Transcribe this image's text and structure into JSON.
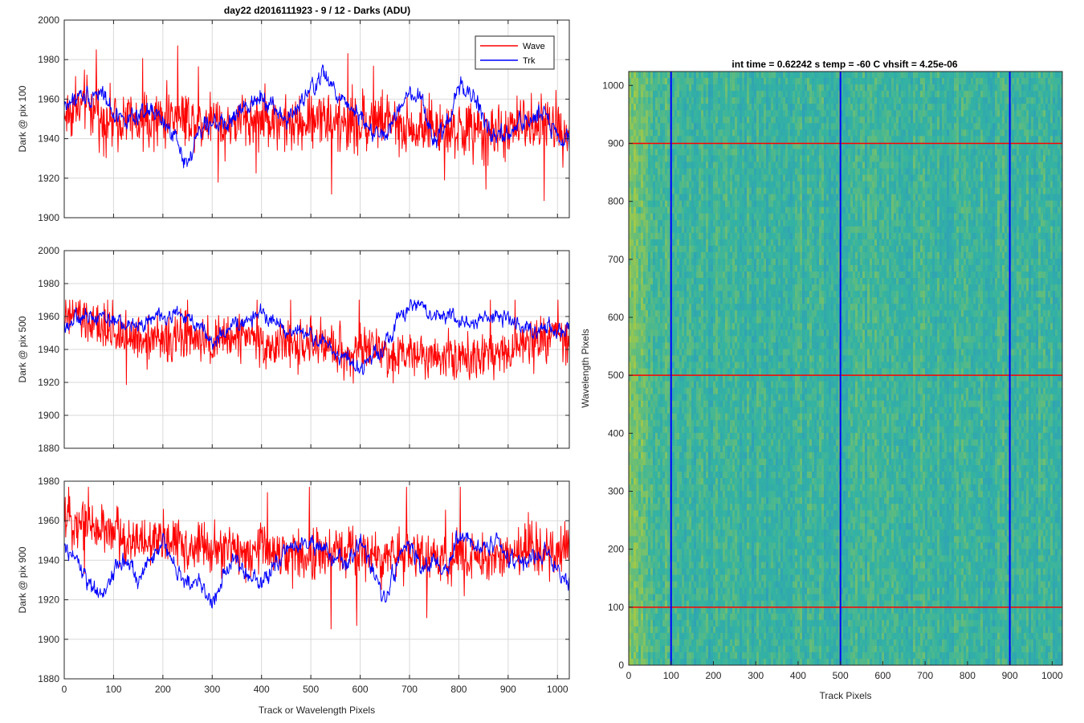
{
  "figure": {
    "title": "day22 d2016111923 - 9 / 12 - Darks (ADU)"
  },
  "colors": {
    "wave": "#ff0000",
    "trk": "#0000ff",
    "grid": "#d9d9d9",
    "axis": "#262626",
    "heat_low": "#2a93c6",
    "heat_mid": "#34b3a2",
    "heat_high": "#9fc94a"
  },
  "chart_data": [
    {
      "type": "line",
      "title": "",
      "xlabel": "",
      "ylabel": "Dark @ pix 100",
      "xlim": [
        0,
        1024
      ],
      "ylim": [
        1900,
        2000
      ],
      "xticks": [
        0,
        100,
        200,
        300,
        400,
        500,
        600,
        700,
        800,
        900,
        1000
      ],
      "yticks": [
        1900,
        1920,
        1940,
        1960,
        1980,
        2000
      ],
      "xtick_labels": [
        "",
        "",
        "",
        "",
        "",
        "",
        "",
        "",
        "",
        "",
        ""
      ],
      "ytick_labels": [
        "1900",
        "1920",
        "1940",
        "1960",
        "1980",
        "2000"
      ],
      "grid": true,
      "legend": {
        "position": "top-right",
        "entries": [
          "Wave",
          "Trk"
        ]
      },
      "series": [
        {
          "name": "Wave",
          "color": "#ff0000",
          "x": [
            0,
            25,
            50,
            75,
            100,
            125,
            150,
            175,
            200,
            225,
            250,
            275,
            300,
            325,
            350,
            375,
            400,
            425,
            450,
            475,
            500,
            525,
            550,
            575,
            600,
            625,
            650,
            675,
            700,
            725,
            750,
            775,
            800,
            825,
            850,
            875,
            900,
            925,
            950,
            975,
            1000,
            1024
          ],
          "y": [
            1952,
            1955,
            1958,
            1950,
            1949,
            1952,
            1946,
            1950,
            1950,
            1953,
            1951,
            1948,
            1952,
            1946,
            1949,
            1950,
            1948,
            1951,
            1946,
            1947,
            1949,
            1953,
            1946,
            1948,
            1946,
            1950,
            1949,
            1944,
            1945,
            1947,
            1946,
            1943,
            1944,
            1945,
            1941,
            1944,
            1942,
            1948,
            1945,
            1947,
            1946,
            1944
          ],
          "noise": 12,
          "spike_min": 1903,
          "spike_max": 1987
        },
        {
          "name": "Trk",
          "color": "#0000ff",
          "x": [
            0,
            25,
            50,
            75,
            100,
            125,
            150,
            175,
            200,
            225,
            250,
            275,
            300,
            325,
            350,
            375,
            400,
            425,
            450,
            475,
            500,
            525,
            550,
            575,
            600,
            625,
            650,
            675,
            700,
            725,
            750,
            775,
            800,
            825,
            850,
            875,
            900,
            925,
            950,
            975,
            1000,
            1024
          ],
          "y": [
            1957,
            1960,
            1962,
            1964,
            1953,
            1950,
            1949,
            1955,
            1948,
            1940,
            1927,
            1945,
            1950,
            1945,
            1952,
            1958,
            1963,
            1955,
            1950,
            1955,
            1965,
            1973,
            1963,
            1958,
            1952,
            1943,
            1940,
            1953,
            1962,
            1958,
            1938,
            1946,
            1967,
            1963,
            1950,
            1940,
            1942,
            1948,
            1950,
            1955,
            1940,
            1938
          ],
          "noise": 5
        }
      ]
    },
    {
      "type": "line",
      "title": "",
      "xlabel": "",
      "ylabel": "Dark @ pix 500",
      "xlim": [
        0,
        1024
      ],
      "ylim": [
        1880,
        2000
      ],
      "xticks": [
        0,
        100,
        200,
        300,
        400,
        500,
        600,
        700,
        800,
        900,
        1000
      ],
      "yticks": [
        1880,
        1900,
        1920,
        1940,
        1960,
        1980,
        2000
      ],
      "xtick_labels": [
        "",
        "",
        "",
        "",
        "",
        "",
        "",
        "",
        "",
        "",
        ""
      ],
      "ytick_labels": [
        "1880",
        "1900",
        "1920",
        "1940",
        "1960",
        "1980",
        "2000"
      ],
      "grid": true,
      "series": [
        {
          "name": "Wave",
          "color": "#ff0000",
          "x": [
            0,
            25,
            50,
            75,
            100,
            125,
            150,
            175,
            200,
            225,
            250,
            275,
            300,
            325,
            350,
            375,
            400,
            425,
            450,
            475,
            500,
            525,
            550,
            575,
            600,
            625,
            650,
            675,
            700,
            725,
            750,
            775,
            800,
            825,
            850,
            875,
            900,
            925,
            950,
            975,
            1000,
            1024
          ],
          "y": [
            1958,
            1962,
            1955,
            1952,
            1948,
            1950,
            1946,
            1948,
            1945,
            1946,
            1948,
            1943,
            1944,
            1946,
            1948,
            1950,
            1945,
            1940,
            1944,
            1941,
            1942,
            1944,
            1940,
            1938,
            1940,
            1942,
            1938,
            1936,
            1938,
            1940,
            1936,
            1938,
            1934,
            1936,
            1938,
            1940,
            1938,
            1942,
            1944,
            1946,
            1948,
            1944
          ],
          "noise": 12,
          "spike_min": 1891,
          "spike_max": 1970
        },
        {
          "name": "Trk",
          "color": "#0000ff",
          "x": [
            0,
            25,
            50,
            75,
            100,
            125,
            150,
            175,
            200,
            225,
            250,
            275,
            300,
            325,
            350,
            375,
            400,
            425,
            450,
            475,
            500,
            525,
            550,
            575,
            600,
            625,
            650,
            675,
            700,
            725,
            750,
            775,
            800,
            825,
            850,
            875,
            900,
            925,
            950,
            975,
            1000,
            1024
          ],
          "y": [
            1955,
            1958,
            1960,
            1962,
            1958,
            1955,
            1954,
            1958,
            1960,
            1962,
            1958,
            1956,
            1945,
            1950,
            1955,
            1958,
            1962,
            1958,
            1950,
            1952,
            1948,
            1945,
            1938,
            1935,
            1925,
            1938,
            1942,
            1958,
            1965,
            1968,
            1960,
            1962,
            1958,
            1955,
            1958,
            1960,
            1958,
            1955,
            1952,
            1955,
            1952,
            1950
          ],
          "noise": 5
        }
      ]
    },
    {
      "type": "line",
      "title": "",
      "xlabel": "Track or Wavelength Pixels",
      "ylabel": "Dark @ pix 900",
      "xlim": [
        0,
        1024
      ],
      "ylim": [
        1880,
        1980
      ],
      "xticks": [
        0,
        100,
        200,
        300,
        400,
        500,
        600,
        700,
        800,
        900,
        1000
      ],
      "yticks": [
        1880,
        1900,
        1920,
        1940,
        1960,
        1980
      ],
      "xtick_labels": [
        "0",
        "100",
        "200",
        "300",
        "400",
        "500",
        "600",
        "700",
        "800",
        "900",
        "1000"
      ],
      "ytick_labels": [
        "1880",
        "1900",
        "1920",
        "1940",
        "1960",
        "1980"
      ],
      "grid": true,
      "series": [
        {
          "name": "Wave",
          "color": "#ff0000",
          "x": [
            0,
            25,
            50,
            75,
            100,
            125,
            150,
            175,
            200,
            225,
            250,
            275,
            300,
            325,
            350,
            375,
            400,
            425,
            450,
            475,
            500,
            525,
            550,
            575,
            600,
            625,
            650,
            675,
            700,
            725,
            750,
            775,
            800,
            825,
            850,
            875,
            900,
            925,
            950,
            975,
            1000,
            1024
          ],
          "y": [
            1962,
            1960,
            1958,
            1956,
            1954,
            1950,
            1952,
            1948,
            1950,
            1950,
            1946,
            1948,
            1944,
            1945,
            1946,
            1944,
            1946,
            1944,
            1942,
            1944,
            1944,
            1942,
            1945,
            1943,
            1944,
            1942,
            1940,
            1944,
            1945,
            1943,
            1940,
            1938,
            1944,
            1942,
            1940,
            1944,
            1942,
            1944,
            1946,
            1944,
            1942,
            1948
          ],
          "noise": 11,
          "spike_min": 1899,
          "spike_max": 1977
        },
        {
          "name": "Trk",
          "color": "#0000ff",
          "x": [
            0,
            25,
            50,
            75,
            100,
            125,
            150,
            175,
            200,
            225,
            250,
            275,
            300,
            325,
            350,
            375,
            400,
            425,
            450,
            475,
            500,
            525,
            550,
            575,
            600,
            625,
            650,
            675,
            700,
            725,
            750,
            775,
            800,
            825,
            850,
            875,
            900,
            925,
            950,
            975,
            1000,
            1024
          ],
          "y": [
            1945,
            1940,
            1928,
            1920,
            1935,
            1940,
            1930,
            1940,
            1950,
            1935,
            1930,
            1928,
            1918,
            1935,
            1940,
            1932,
            1928,
            1938,
            1945,
            1950,
            1948,
            1945,
            1940,
            1938,
            1950,
            1935,
            1918,
            1940,
            1948,
            1935,
            1938,
            1935,
            1952,
            1948,
            1945,
            1950,
            1940,
            1938,
            1942,
            1945,
            1935,
            1928
          ],
          "noise": 5
        }
      ]
    },
    {
      "type": "heatmap",
      "title": "int time = 0.62242 s    temp = -60 C    vhsift = 4.25e-06",
      "xlabel": "Track Pixels",
      "ylabel": "Wavelength Pixels",
      "xlim": [
        0,
        1024
      ],
      "ylim": [
        0,
        1024
      ],
      "xticks": [
        0,
        100,
        200,
        300,
        400,
        500,
        600,
        700,
        800,
        900,
        1000
      ],
      "yticks": [
        0,
        100,
        200,
        300,
        400,
        500,
        600,
        700,
        800,
        900,
        1000
      ],
      "xtick_labels": [
        "0",
        "100",
        "200",
        "300",
        "400",
        "500",
        "600",
        "700",
        "800",
        "900",
        "1000"
      ],
      "ytick_labels": [
        "0",
        "100",
        "200",
        "300",
        "400",
        "500",
        "600",
        "700",
        "800",
        "900",
        "1000"
      ],
      "grid": false,
      "vertical_lines": {
        "color": "#0000ff",
        "x": [
          100,
          500,
          900
        ]
      },
      "horizontal_lines": {
        "color": "#ff0000",
        "y": [
          100,
          500,
          900
        ]
      }
    }
  ]
}
